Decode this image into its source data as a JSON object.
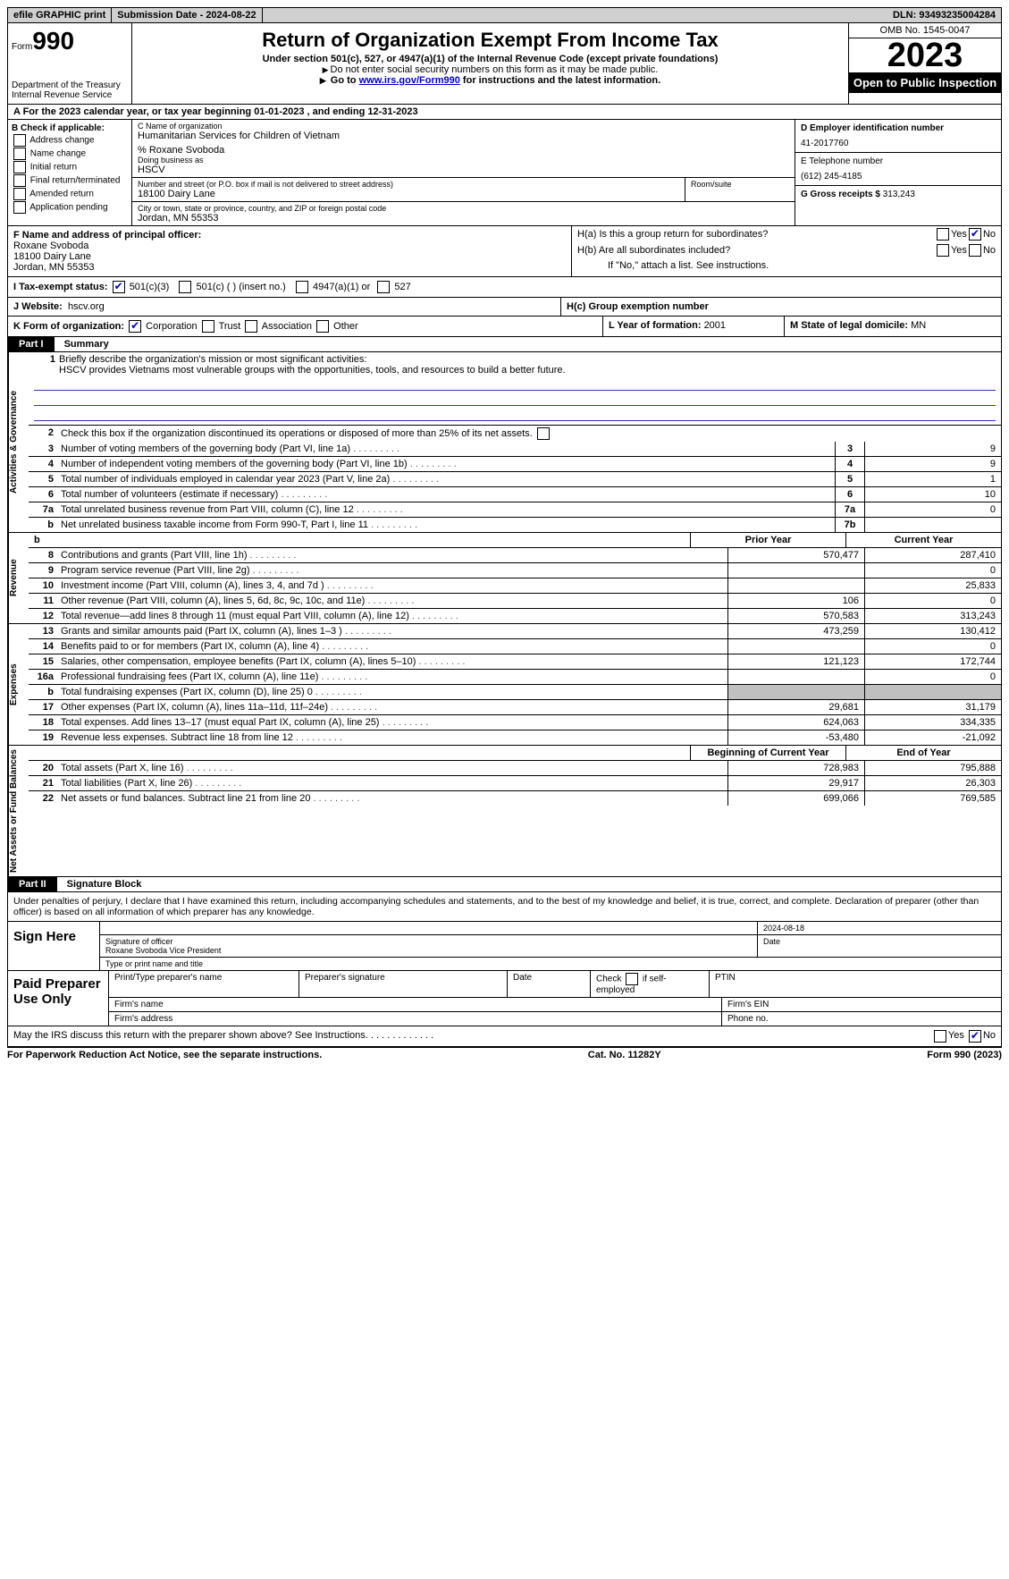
{
  "topbar": {
    "efile": "efile GRAPHIC print",
    "submission": "Submission Date - 2024-08-22",
    "dln": "DLN: 93493235004284"
  },
  "header": {
    "form_label": "Form",
    "form_num": "990",
    "dept": "Department of the Treasury",
    "irs": "Internal Revenue Service",
    "title": "Return of Organization Exempt From Income Tax",
    "subtitle": "Under section 501(c), 527, or 4947(a)(1) of the Internal Revenue Code (except private foundations)",
    "note1": "Do not enter social security numbers on this form as it may be made public.",
    "note2_pre": "Go to ",
    "note2_link": "www.irs.gov/Form990",
    "note2_post": " for instructions and the latest information.",
    "omb": "OMB No. 1545-0047",
    "year": "2023",
    "open": "Open to Public Inspection"
  },
  "row_a": "A For the 2023 calendar year, or tax year beginning 01-01-2023   , and ending 12-31-2023",
  "box_b": {
    "label": "B Check if applicable:",
    "items": [
      "Address change",
      "Name change",
      "Initial return",
      "Final return/terminated",
      "Amended return",
      "Application pending"
    ]
  },
  "box_c": {
    "name_lbl": "C Name of organization",
    "name": "Humanitarian Services for Children of Vietnam",
    "care_of": "% Roxane Svoboda",
    "dba_lbl": "Doing business as",
    "dba": "HSCV",
    "street_lbl": "Number and street (or P.O. box if mail is not delivered to street address)",
    "street": "18100 Dairy Lane",
    "room_lbl": "Room/suite",
    "city_lbl": "City or town, state or province, country, and ZIP or foreign postal code",
    "city": "Jordan, MN  55353"
  },
  "box_d": {
    "lbl": "D Employer identification number",
    "val": "41-2017760"
  },
  "box_e": {
    "lbl": "E Telephone number",
    "val": "(612) 245-4185"
  },
  "box_g": {
    "lbl": "G Gross receipts $ ",
    "val": "313,243"
  },
  "box_f": {
    "lbl": "F  Name and address of principal officer:",
    "l1": "Roxane Svoboda",
    "l2": "18100 Dairy Lane",
    "l3": "Jordan, MN  55353"
  },
  "box_h": {
    "a": "H(a)  Is this a group return for subordinates?",
    "b": "H(b)  Are all subordinates included?",
    "b_note": "If \"No,\" attach a list. See instructions.",
    "c": "H(c)  Group exemption number"
  },
  "row_i": {
    "lbl": "I   Tax-exempt status:",
    "o1": "501(c)(3)",
    "o2": "501(c) (  ) (insert no.)",
    "o3": "4947(a)(1) or",
    "o4": "527"
  },
  "row_j": {
    "lbl": "J   Website:",
    "val": "hscv.org"
  },
  "row_k": {
    "lbl": "K Form of organization:",
    "o1": "Corporation",
    "o2": "Trust",
    "o3": "Association",
    "o4": "Other"
  },
  "row_l": {
    "lbl": "L Year of formation: ",
    "val": "2001"
  },
  "row_m": {
    "lbl": "M State of legal domicile: ",
    "val": "MN"
  },
  "part1": {
    "num": "Part I",
    "title": "Summary"
  },
  "mission": {
    "num": "1",
    "lbl": "Briefly describe the organization's mission or most significant activities:",
    "text": "HSCV provides Vietnams most vulnerable groups with the opportunities, tools, and resources to build a better future."
  },
  "gov": [
    {
      "n": "2",
      "d": "Check this box      if the organization discontinued its operations or disposed of more than 25% of its net assets.",
      "b": "",
      "v": ""
    },
    {
      "n": "3",
      "d": "Number of voting members of the governing body (Part VI, line 1a)",
      "b": "3",
      "v": "9"
    },
    {
      "n": "4",
      "d": "Number of independent voting members of the governing body (Part VI, line 1b)",
      "b": "4",
      "v": "9"
    },
    {
      "n": "5",
      "d": "Total number of individuals employed in calendar year 2023 (Part V, line 2a)",
      "b": "5",
      "v": "1"
    },
    {
      "n": "6",
      "d": "Total number of volunteers (estimate if necessary)",
      "b": "6",
      "v": "10"
    },
    {
      "n": "7a",
      "d": "Total unrelated business revenue from Part VIII, column (C), line 12",
      "b": "7a",
      "v": "0"
    },
    {
      "n": "b",
      "d": "Net unrelated business taxable income from Form 990-T, Part I, line 11",
      "b": "7b",
      "v": ""
    }
  ],
  "rev_hdr": {
    "c1": "Prior Year",
    "c2": "Current Year"
  },
  "rev": [
    {
      "n": "8",
      "d": "Contributions and grants (Part VIII, line 1h)",
      "p": "570,477",
      "c": "287,410"
    },
    {
      "n": "9",
      "d": "Program service revenue (Part VIII, line 2g)",
      "p": "",
      "c": "0"
    },
    {
      "n": "10",
      "d": "Investment income (Part VIII, column (A), lines 3, 4, and 7d )",
      "p": "",
      "c": "25,833"
    },
    {
      "n": "11",
      "d": "Other revenue (Part VIII, column (A), lines 5, 6d, 8c, 9c, 10c, and 11e)",
      "p": "106",
      "c": "0"
    },
    {
      "n": "12",
      "d": "Total revenue—add lines 8 through 11 (must equal Part VIII, column (A), line 12)",
      "p": "570,583",
      "c": "313,243"
    }
  ],
  "exp": [
    {
      "n": "13",
      "d": "Grants and similar amounts paid (Part IX, column (A), lines 1–3 )",
      "p": "473,259",
      "c": "130,412"
    },
    {
      "n": "14",
      "d": "Benefits paid to or for members (Part IX, column (A), line 4)",
      "p": "",
      "c": "0"
    },
    {
      "n": "15",
      "d": "Salaries, other compensation, employee benefits (Part IX, column (A), lines 5–10)",
      "p": "121,123",
      "c": "172,744"
    },
    {
      "n": "16a",
      "d": "Professional fundraising fees (Part IX, column (A), line 11e)",
      "p": "",
      "c": "0"
    },
    {
      "n": "b",
      "d": "Total fundraising expenses (Part IX, column (D), line 25) 0",
      "p": "GREY",
      "c": "GREY"
    },
    {
      "n": "17",
      "d": "Other expenses (Part IX, column (A), lines 11a–11d, 11f–24e)",
      "p": "29,681",
      "c": "31,179"
    },
    {
      "n": "18",
      "d": "Total expenses. Add lines 13–17 (must equal Part IX, column (A), line 25)",
      "p": "624,063",
      "c": "334,335"
    },
    {
      "n": "19",
      "d": "Revenue less expenses. Subtract line 18 from line 12",
      "p": "-53,480",
      "c": "-21,092"
    }
  ],
  "net_hdr": {
    "c1": "Beginning of Current Year",
    "c2": "End of Year"
  },
  "net": [
    {
      "n": "20",
      "d": "Total assets (Part X, line 16)",
      "p": "728,983",
      "c": "795,888"
    },
    {
      "n": "21",
      "d": "Total liabilities (Part X, line 26)",
      "p": "29,917",
      "c": "26,303"
    },
    {
      "n": "22",
      "d": "Net assets or fund balances. Subtract line 21 from line 20",
      "p": "699,066",
      "c": "769,585"
    }
  ],
  "part2": {
    "num": "Part II",
    "title": "Signature Block"
  },
  "sig": {
    "decl": "Under penalties of perjury, I declare that I have examined this return, including accompanying schedules and statements, and to the best of my knowledge and belief, it is true, correct, and complete. Declaration of preparer (other than officer) is based on all information of which preparer has any knowledge.",
    "sign_here": "Sign Here",
    "date": "2024-08-18",
    "sig_lbl": "Signature of officer",
    "name": "Roxane Svoboda Vice President",
    "name_lbl": "Type or print name and title",
    "date_lbl": "Date"
  },
  "prep": {
    "lbl": "Paid Preparer Use Only",
    "h1": "Print/Type preparer's name",
    "h2": "Preparer's signature",
    "h3": "Date",
    "h4_pre": "Check ",
    "h4_post": " if self-employed",
    "h5": "PTIN",
    "f1": "Firm's name",
    "f2": "Firm's EIN",
    "f3": "Firm's address",
    "f4": "Phone no."
  },
  "discuss": {
    "q": "May the IRS discuss this return with the preparer shown above? See Instructions.",
    "yes": "Yes",
    "no": "No"
  },
  "footer": {
    "l": "For Paperwork Reduction Act Notice, see the separate instructions.",
    "m": "Cat. No. 11282Y",
    "r": "Form 990 (2023)"
  }
}
